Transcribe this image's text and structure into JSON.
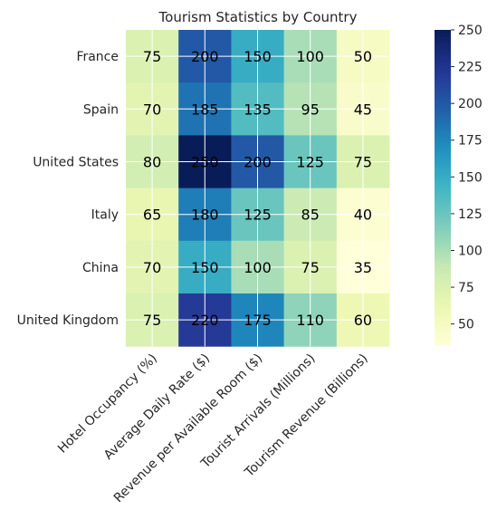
{
  "chart_data": {
    "type": "heatmap",
    "title": "Tourism Statistics by Country",
    "xlabel": "",
    "ylabel": "",
    "rows": [
      "France",
      "Spain",
      "United States",
      "Italy",
      "China",
      "United Kingdom"
    ],
    "columns": [
      "Hotel Occupancy (%)",
      "Average Daily Rate ($)",
      "Revenue per Available Room ($)",
      "Tourist Arrivals (Millions)",
      "Tourism Revenue (Billions)"
    ],
    "values": [
      [
        75,
        200,
        150,
        100,
        50
      ],
      [
        70,
        185,
        135,
        95,
        45
      ],
      [
        80,
        250,
        200,
        125,
        75
      ],
      [
        65,
        180,
        125,
        85,
        40
      ],
      [
        70,
        150,
        100,
        75,
        35
      ],
      [
        75,
        220,
        175,
        110,
        60
      ]
    ],
    "colormap": "YlGnBu",
    "color_range": [
      35,
      250
    ],
    "colorbar_ticks": [
      50,
      75,
      100,
      125,
      150,
      175,
      200,
      225,
      250
    ],
    "grid": true,
    "legend": "colorbar right"
  }
}
